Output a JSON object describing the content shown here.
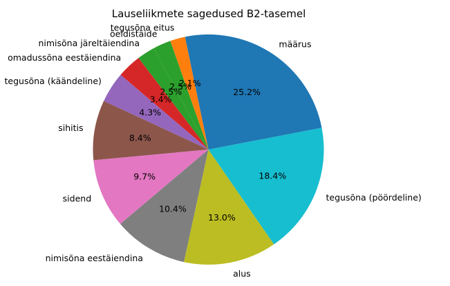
{
  "chart_data": {
    "type": "pie",
    "title": "Lauseliikmete sagedused B2-tasemel",
    "start_angle_deg": 10.9,
    "direction": "counterclockwise",
    "slices": [
      {
        "label": "määrus",
        "value": 25.2,
        "pct_label": "25.2%",
        "color": "#1f77b4"
      },
      {
        "label": "tegusõna eitus",
        "value": 2.1,
        "pct_label": "2.1%",
        "color": "#ff7f0e"
      },
      {
        "label": "öeldistäide",
        "value": 2.5,
        "pct_label": "2.5%",
        "color": "#2ca02c"
      },
      {
        "label": "nimisõna järeltäiendina",
        "value": 2.5,
        "pct_label": "2.5%",
        "color": "#2ca02c"
      },
      {
        "label": "omadussõna eestäiendina",
        "value": 3.4,
        "pct_label": "3.4%",
        "color": "#d62728"
      },
      {
        "label": "tegusõna (käändeline)",
        "value": 4.3,
        "pct_label": "4.3%",
        "color": "#9467bd"
      },
      {
        "label": "sihitis",
        "value": 8.4,
        "pct_label": "8.4%",
        "color": "#8c564b"
      },
      {
        "label": "sidend",
        "value": 9.7,
        "pct_label": "9.7%",
        "color": "#e377c2"
      },
      {
        "label": "nimisõna eestäiendina",
        "value": 10.4,
        "pct_label": "10.4%",
        "color": "#7f7f7f"
      },
      {
        "label": "alus",
        "value": 13.0,
        "pct_label": "13.0%",
        "color": "#bcbd22"
      },
      {
        "label": "tegusõna (pöördeline)",
        "value": 18.4,
        "pct_label": "18.4%",
        "color": "#17becf"
      }
    ]
  }
}
